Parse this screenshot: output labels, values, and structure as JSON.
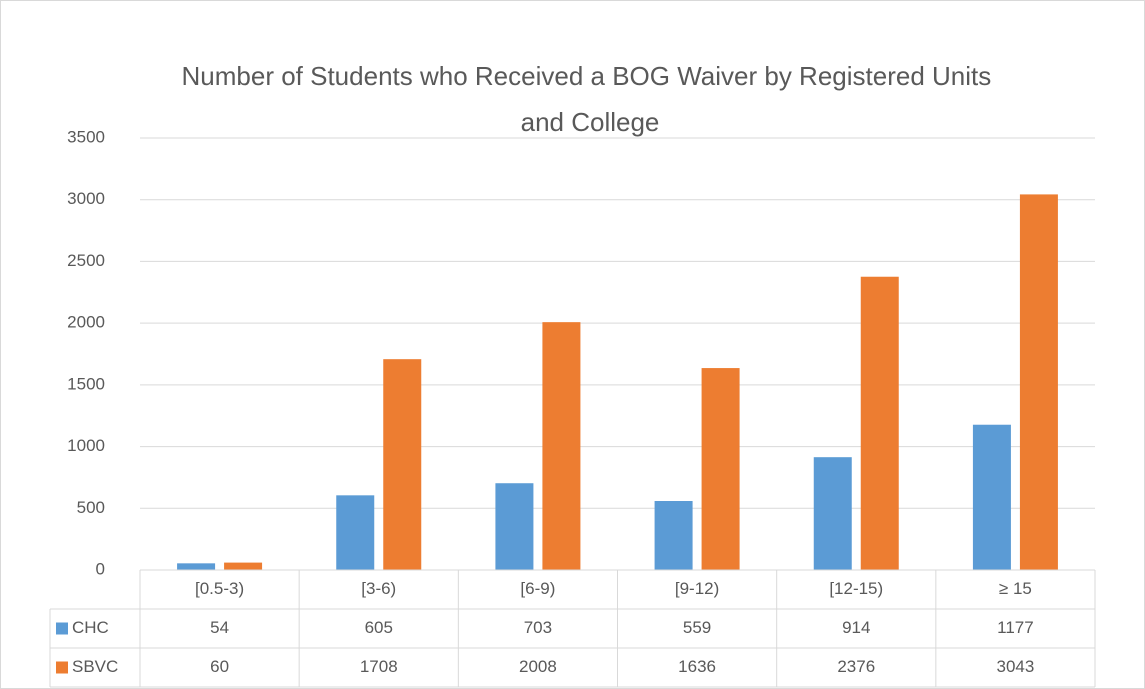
{
  "chart_data": {
    "type": "bar",
    "title": "Number of Students who Received a BOG Waiver by Registered Units and College",
    "categories": [
      "[0.5-3)",
      "[3-6)",
      "[6-9)",
      "[9-12)",
      "[12-15)",
      "≥ 15"
    ],
    "series": [
      {
        "name": "CHC",
        "color": "#5b9bd5",
        "values": [
          54,
          605,
          703,
          559,
          914,
          1177
        ]
      },
      {
        "name": "SBVC",
        "color": "#ed7d31",
        "values": [
          60,
          1708,
          2008,
          1636,
          2376,
          3043
        ]
      }
    ],
    "ylim": [
      0,
      3500
    ],
    "yticks": [
      0,
      500,
      1000,
      1500,
      2000,
      2500,
      3000,
      3500
    ],
    "grid": true
  }
}
